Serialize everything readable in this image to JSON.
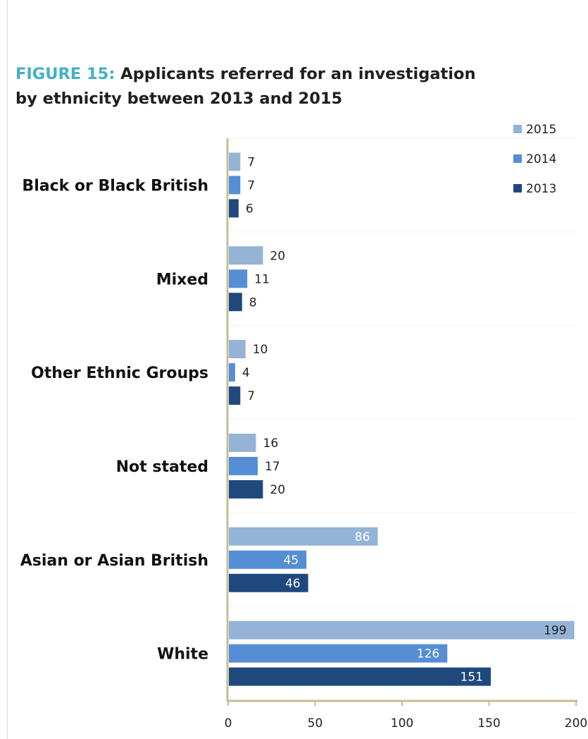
{
  "title": {
    "label": "FIGURE 15:",
    "text_line1": "Applicants referred for an investigation",
    "text_line2": "by ethnicity between 2013 and 2015"
  },
  "chart_data": {
    "type": "bar",
    "orientation": "horizontal",
    "categories": [
      "Black or Black British",
      "Mixed",
      "Other Ethnic Groups",
      "Not stated",
      "Asian or Asian British",
      "White"
    ],
    "series": [
      {
        "name": "2015",
        "color": "#95b3d7",
        "values": [
          7,
          20,
          10,
          16,
          86,
          199
        ]
      },
      {
        "name": "2014",
        "color": "#558ed5",
        "values": [
          7,
          11,
          4,
          17,
          45,
          126
        ]
      },
      {
        "name": "2013",
        "color": "#1f497d",
        "values": [
          6,
          8,
          7,
          20,
          46,
          151
        ]
      }
    ],
    "xlim": [
      0,
      200
    ],
    "xticks": [
      0,
      50,
      100,
      150,
      200
    ],
    "data_labels": true,
    "legend_position": "top-right",
    "grid": "horizontal separators between categories",
    "axis_color": "#c4bd97"
  }
}
